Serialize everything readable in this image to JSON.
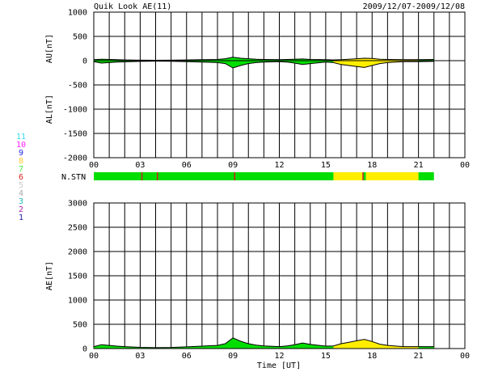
{
  "header": {
    "title": "Quik Look AE(11)",
    "date_range": "2009/12/07-2009/12/08"
  },
  "colors": {
    "background": "#ffffff",
    "grid": "#000000",
    "trace": "#000000",
    "good_fill": "#00dd00",
    "partial_fill": "#ffee00",
    "gap_mark": "#cc2222"
  },
  "legend": {
    "items": [
      {
        "label": "11",
        "color": "#33ddee"
      },
      {
        "label": "10",
        "color": "#ff22ff"
      },
      {
        "label": "9",
        "color": "#2222dd"
      },
      {
        "label": "8",
        "color": "#ffcc33"
      },
      {
        "label": "7",
        "color": "#44ee44"
      },
      {
        "label": "6",
        "color": "#dd2222"
      },
      {
        "label": "5",
        "color": "#cccccc"
      },
      {
        "label": "4",
        "color": "#aaaaaa"
      },
      {
        "label": "3",
        "color": "#22bbbb"
      },
      {
        "label": "2",
        "color": "#aa22aa"
      },
      {
        "label": "1",
        "color": "#2222aa"
      }
    ]
  },
  "chart_data": [
    {
      "type": "area",
      "panel": "AU/AL",
      "ylabel_top": "AU[nT]",
      "ylabel_bottom": "AL[nT]",
      "ylim": [
        -2000,
        1000
      ],
      "yticks": [
        1000,
        500,
        0,
        -500,
        -1000,
        -1500,
        -2000
      ],
      "xlim": [
        0,
        24
      ],
      "xticks": [
        "00",
        "03",
        "06",
        "09",
        "12",
        "15",
        "18",
        "21",
        "00"
      ],
      "grid": true,
      "series": [
        {
          "name": "AU",
          "x": [
            0,
            0.5,
            1,
            1.5,
            2,
            3,
            4,
            5,
            6,
            7,
            8,
            8.5,
            9,
            9.5,
            10,
            10.5,
            11,
            12,
            12.5,
            13,
            13.5,
            14,
            15,
            15.5,
            16,
            16.5,
            17,
            17.5,
            18,
            18.5,
            19,
            20,
            21,
            22
          ],
          "y": [
            20,
            30,
            25,
            20,
            15,
            10,
            8,
            10,
            15,
            20,
            25,
            40,
            70,
            50,
            40,
            30,
            25,
            20,
            25,
            30,
            35,
            25,
            20,
            15,
            20,
            30,
            40,
            50,
            45,
            30,
            25,
            20,
            20,
            25
          ]
        },
        {
          "name": "AL",
          "x": [
            0,
            0.5,
            1,
            1.5,
            2,
            3,
            4,
            5,
            6,
            7,
            8,
            8.5,
            9,
            9.5,
            10,
            10.5,
            11,
            12,
            12.5,
            13,
            13.5,
            14,
            15,
            15.5,
            16,
            16.5,
            17,
            17.5,
            18,
            18.5,
            19,
            20,
            21,
            22
          ],
          "y": [
            -20,
            -50,
            -40,
            -30,
            -25,
            -15,
            -10,
            -12,
            -20,
            -30,
            -40,
            -60,
            -150,
            -100,
            -60,
            -40,
            -30,
            -20,
            -30,
            -50,
            -80,
            -60,
            -30,
            -40,
            -80,
            -100,
            -120,
            -140,
            -100,
            -60,
            -40,
            -20,
            -20,
            -15
          ]
        }
      ],
      "station_bar": {
        "label": "N.STN",
        "segments": [
          {
            "start": 0,
            "end": 15.5,
            "stations": 11
          },
          {
            "start": 15.5,
            "end": 17.4,
            "stations": 8
          },
          {
            "start": 17.4,
            "end": 17.6,
            "stations": 11
          },
          {
            "start": 17.6,
            "end": 21,
            "stations": 8
          },
          {
            "start": 21,
            "end": 22,
            "stations": 11
          }
        ],
        "gaps": [
          3.1,
          4.1,
          9.1,
          17.4
        ]
      }
    },
    {
      "type": "area",
      "panel": "AE",
      "ylabel": "AE[nT]",
      "xlabel": "Time [UT]",
      "ylim": [
        0,
        3000
      ],
      "yticks": [
        3000,
        2500,
        2000,
        1500,
        1000,
        500,
        0
      ],
      "xlim": [
        0,
        24
      ],
      "xticks": [
        "00",
        "03",
        "06",
        "09",
        "12",
        "15",
        "18",
        "21",
        "00"
      ],
      "grid": true,
      "series": [
        {
          "name": "AE",
          "x": [
            0,
            0.5,
            1,
            1.5,
            2,
            3,
            4,
            5,
            6,
            7,
            8,
            8.5,
            9,
            9.5,
            10,
            10.5,
            11,
            12,
            12.5,
            13,
            13.5,
            14,
            15,
            15.5,
            16,
            16.5,
            17,
            17.5,
            18,
            18.5,
            19,
            20,
            21,
            22
          ],
          "y": [
            40,
            80,
            65,
            50,
            40,
            25,
            18,
            22,
            35,
            50,
            65,
            100,
            220,
            150,
            100,
            70,
            55,
            40,
            55,
            80,
            115,
            85,
            50,
            55,
            100,
            130,
            160,
            190,
            145,
            90,
            65,
            40,
            40,
            40
          ]
        }
      ]
    }
  ]
}
